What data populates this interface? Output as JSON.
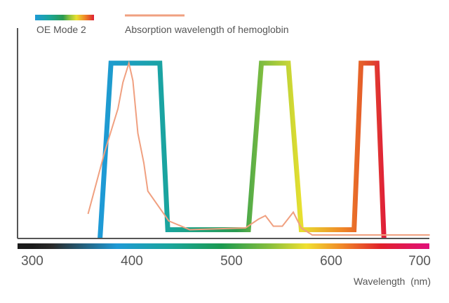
{
  "chart_data": {
    "type": "line",
    "title": "",
    "xlabel": "Wavelength  (nm)",
    "ylabel": "",
    "xlim": [
      300,
      700
    ],
    "ylim": [
      0,
      100
    ],
    "x_ticks": [
      "300",
      "400",
      "500",
      "600",
      "700"
    ],
    "grid": false,
    "legend_placement": "top-left",
    "series": [
      {
        "name": "OE Mode 2",
        "style": "thick line with spectrum gradient",
        "points": [
          [
            368,
            0
          ],
          [
            379,
            100
          ],
          [
            428,
            100
          ],
          [
            436,
            5
          ],
          [
            517,
            5
          ],
          [
            530,
            100
          ],
          [
            557,
            100
          ],
          [
            570,
            5
          ],
          [
            623,
            5
          ],
          [
            630,
            100
          ],
          [
            646,
            100
          ],
          [
            653,
            0
          ]
        ]
      },
      {
        "name": "Absorption wavelength of hemoglobin",
        "color": "#f0a080",
        "points": [
          [
            356,
            14
          ],
          [
            373,
            50
          ],
          [
            386,
            74
          ],
          [
            391,
            89
          ],
          [
            397,
            100
          ],
          [
            401,
            90
          ],
          [
            406,
            60
          ],
          [
            412,
            43
          ],
          [
            416,
            27
          ],
          [
            437,
            10
          ],
          [
            458,
            5
          ],
          [
            514,
            6
          ],
          [
            527,
            11
          ],
          [
            534,
            13
          ],
          [
            542,
            7
          ],
          [
            551,
            7
          ],
          [
            562,
            15
          ],
          [
            570,
            6
          ],
          [
            581,
            2
          ],
          [
            699,
            2
          ]
        ]
      }
    ],
    "spectrum_bar_stops": [
      {
        "nm": 300,
        "color": "#1a1a1a"
      },
      {
        "nm": 320,
        "color": "#2a2a2a"
      },
      {
        "nm": 385,
        "color": "#1e9ad6"
      },
      {
        "nm": 440,
        "color": "#1aa59a"
      },
      {
        "nm": 490,
        "color": "#1a9a50"
      },
      {
        "nm": 540,
        "color": "#8cc03c"
      },
      {
        "nm": 575,
        "color": "#f0e030"
      },
      {
        "nm": 610,
        "color": "#f08a28"
      },
      {
        "nm": 650,
        "color": "#e0202a"
      },
      {
        "nm": 700,
        "color": "#e0107a"
      }
    ],
    "band_gradient_stops": [
      {
        "nm": 370,
        "color": "#1e9ad6"
      },
      {
        "nm": 440,
        "color": "#1aa59a"
      },
      {
        "nm": 505,
        "color": "#2a9a50"
      },
      {
        "nm": 530,
        "color": "#7cbc40"
      },
      {
        "nm": 570,
        "color": "#e8e030"
      },
      {
        "nm": 610,
        "color": "#f08a28"
      },
      {
        "nm": 640,
        "color": "#e04a2a"
      },
      {
        "nm": 655,
        "color": "#e01a3a"
      }
    ],
    "axis_color": "#555555"
  }
}
